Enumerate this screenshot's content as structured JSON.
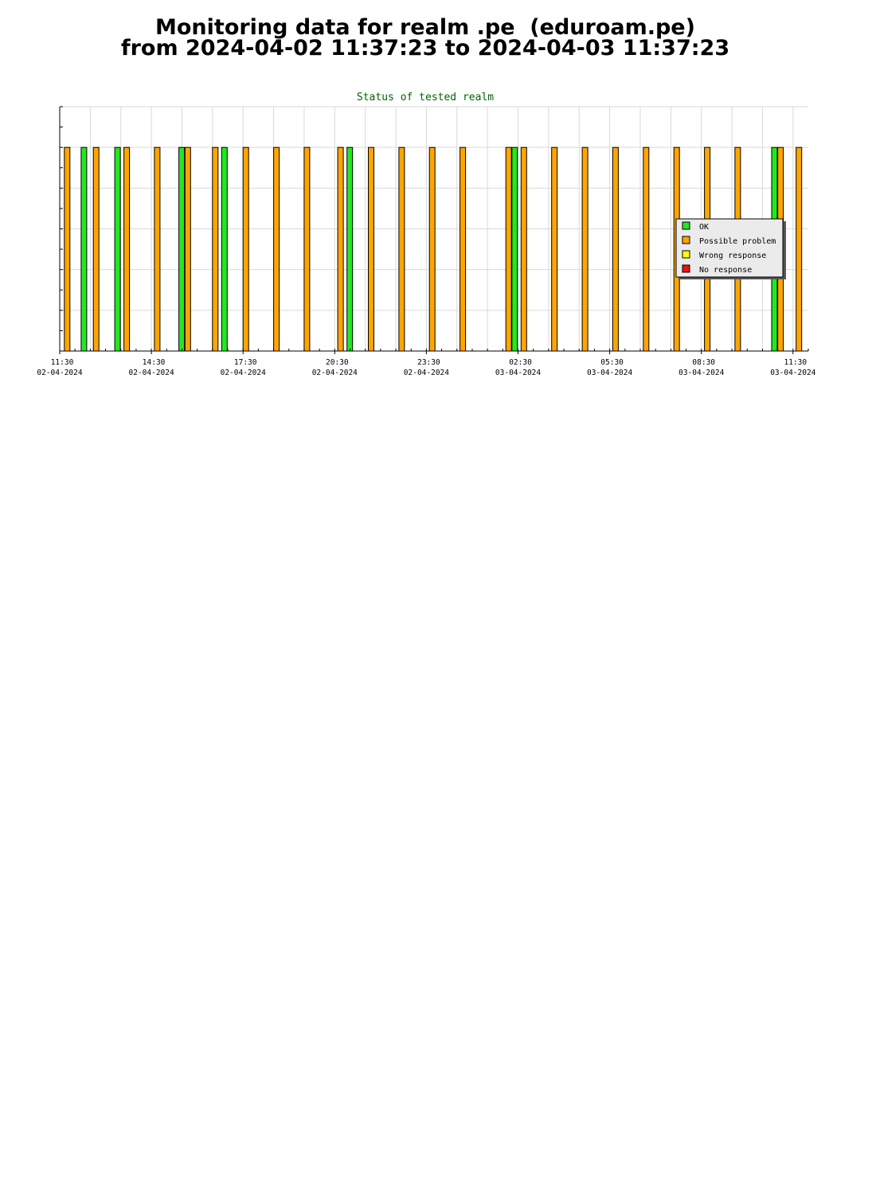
{
  "page": {
    "title_line1": "Monitoring data for realm .pe  (eduroam.pe)",
    "title_line2": "from 2024-04-02 11:37:23 to 2024-04-03 11:37:23"
  },
  "colors": {
    "ok": "#22e822",
    "possible_problem": "#ffa500",
    "wrong_response": "#ffff00",
    "no_response": "#ee1111",
    "title": "#006400",
    "grid": "#d9d9d9",
    "legend_bg": "#ebebeb"
  },
  "chart_data": {
    "type": "bar",
    "title": "Status of tested realm",
    "xlabel": "",
    "ylabel": "",
    "grid": true,
    "legend_position": "right",
    "x_range_hours": [
      0,
      24.5
    ],
    "ylim": [
      0,
      6
    ],
    "bar_value": 5,
    "x_ticks": [
      {
        "time": "11:30",
        "date": "02-04-2024"
      },
      {
        "time": "14:30",
        "date": "02-04-2024"
      },
      {
        "time": "17:30",
        "date": "02-04-2024"
      },
      {
        "time": "20:30",
        "date": "02-04-2024"
      },
      {
        "time": "23:30",
        "date": "02-04-2024"
      },
      {
        "time": "02:30",
        "date": "03-04-2024"
      },
      {
        "time": "05:30",
        "date": "03-04-2024"
      },
      {
        "time": "08:30",
        "date": "03-04-2024"
      },
      {
        "time": "11:30",
        "date": "03-04-2024"
      }
    ],
    "legend": [
      {
        "key": "ok",
        "label": "OK"
      },
      {
        "key": "possible_problem",
        "label": "Possible problem"
      },
      {
        "key": "wrong_response",
        "label": "Wrong response"
      },
      {
        "key": "no_response",
        "label": "No response"
      }
    ],
    "series": [
      {
        "key": "ok",
        "x": [
          0.7,
          1.8,
          3.9,
          5.3,
          9.4,
          14.8,
          23.3
        ]
      },
      {
        "key": "possible_problem",
        "x": [
          0.15,
          1.1,
          2.1,
          3.1,
          4.1,
          5.0,
          6.0,
          7.0,
          8.0,
          9.1,
          10.1,
          11.1,
          12.1,
          13.1,
          14.6,
          15.1,
          16.1,
          17.1,
          18.1,
          19.1,
          20.1,
          21.1,
          22.1,
          23.5,
          24.1
        ]
      }
    ]
  }
}
